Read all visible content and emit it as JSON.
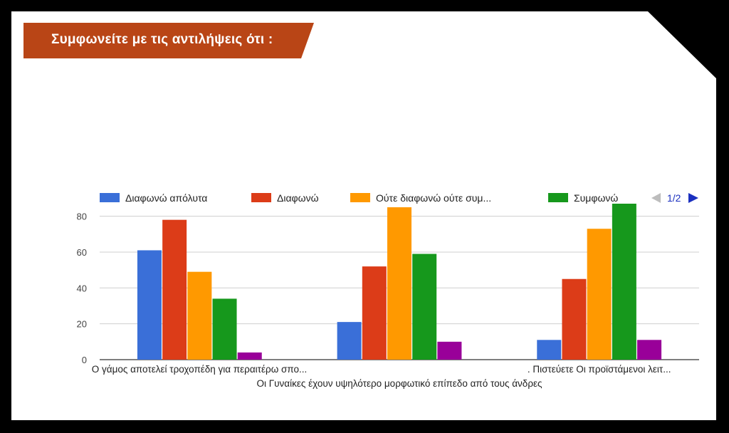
{
  "banner": {
    "title": "Συμφωνείτε με τις αντιλήψεις ότι :",
    "color": "#b94516"
  },
  "legend": {
    "page": "1/2"
  },
  "chart_data": {
    "type": "bar",
    "title": "",
    "xlabel": "",
    "ylabel": "",
    "ylim": [
      0,
      87
    ],
    "yticks": [
      0,
      20,
      40,
      60,
      80
    ],
    "grid": true,
    "legend_position": "top",
    "categories": [
      "Ο γάμος αποτελεί τροχοπέδη για περαιτέρω σπο...",
      "Οι Γυναίκες έχουν υψηλότερο μορφωτικό επίπεδο από τους άνδρες",
      ". Πιστεύετε Οι προϊστάμενοι λειτ..."
    ],
    "series": [
      {
        "name": "Διαφωνώ απόλυτα",
        "color": "#3a6fd8",
        "values": [
          61,
          21,
          11
        ]
      },
      {
        "name": "Διαφωνώ",
        "color": "#dc3c18",
        "values": [
          78,
          52,
          45
        ]
      },
      {
        "name": "Ούτε διαφωνώ ούτε συμ...",
        "color": "#ff9900",
        "values": [
          49,
          85,
          73
        ]
      },
      {
        "name": "Συμφωνώ",
        "color": "#16981c",
        "values": [
          34,
          59,
          87
        ]
      },
      {
        "color": "#990099",
        "values": [
          4,
          10,
          11
        ]
      }
    ]
  }
}
